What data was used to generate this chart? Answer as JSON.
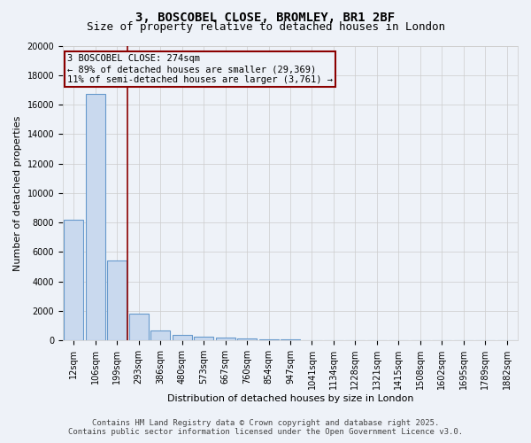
{
  "title": "3, BOSCOBEL CLOSE, BROMLEY, BR1 2BF",
  "subtitle": "Size of property relative to detached houses in London",
  "xlabel": "Distribution of detached houses by size in London",
  "ylabel": "Number of detached properties",
  "categories": [
    "12sqm",
    "106sqm",
    "199sqm",
    "293sqm",
    "386sqm",
    "480sqm",
    "573sqm",
    "667sqm",
    "760sqm",
    "854sqm",
    "947sqm",
    "1041sqm",
    "1134sqm",
    "1228sqm",
    "1321sqm",
    "1415sqm",
    "1508sqm",
    "1602sqm",
    "1695sqm",
    "1789sqm",
    "1882sqm"
  ],
  "bar_heights": [
    8200,
    16700,
    5400,
    1800,
    700,
    350,
    250,
    170,
    110,
    70,
    50,
    30,
    20,
    15,
    10,
    8,
    6,
    5,
    4,
    3,
    2
  ],
  "bar_color": "#c9d9ee",
  "bar_edge_color": "#6699cc",
  "vline_x": 2.5,
  "vline_color": "#8b0000",
  "annotation_box_color": "#8b0000",
  "annotation_line1": "3 BOSCOBEL CLOSE: 274sqm",
  "annotation_line2": "← 89% of detached houses are smaller (29,369)",
  "annotation_line3": "11% of semi-detached houses are larger (3,761) →",
  "ylim": [
    0,
    20000
  ],
  "yticks": [
    0,
    2000,
    4000,
    6000,
    8000,
    10000,
    12000,
    14000,
    16000,
    18000,
    20000
  ],
  "grid_color": "#cccccc",
  "footer_line1": "Contains HM Land Registry data © Crown copyright and database right 2025.",
  "footer_line2": "Contains public sector information licensed under the Open Government Licence v3.0.",
  "bg_color": "#eef2f8",
  "title_fontsize": 10,
  "subtitle_fontsize": 9,
  "axis_label_fontsize": 8,
  "tick_fontsize": 7,
  "annotation_fontsize": 7.5,
  "footer_fontsize": 6.5
}
